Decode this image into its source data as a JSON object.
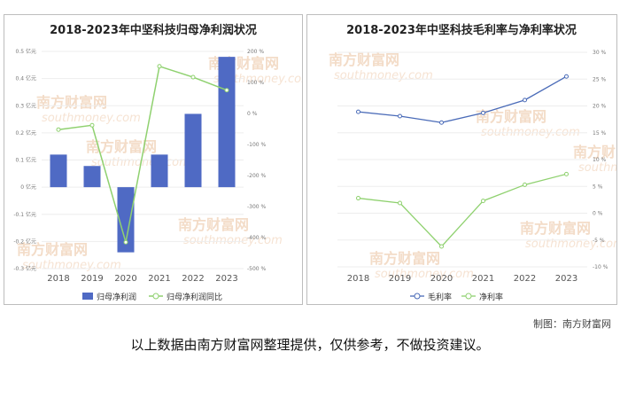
{
  "chart_data": [
    {
      "type": "bar",
      "title": "2018-2023年中坚科技归母净利润状况",
      "categories": [
        "2018",
        "2019",
        "2020",
        "2021",
        "2022",
        "2023"
      ],
      "series": [
        {
          "name": "归母净利润",
          "type": "bar",
          "axis": "left",
          "color": "#4f6ac4",
          "values": [
            0.12,
            0.078,
            -0.24,
            0.12,
            0.27,
            0.48
          ]
        },
        {
          "name": "归母净利润同比",
          "type": "line",
          "axis": "right",
          "color": "#8fd16f",
          "values": [
            -52,
            -38,
            -415,
            152,
            117,
            75
          ]
        }
      ],
      "y_left": {
        "min": -0.3,
        "max": 0.5,
        "ticks": [
          "-0.3 亿元",
          "-0.2 亿元",
          "-0.1 亿元",
          "0 亿元",
          "0.1 亿元",
          "0.2 亿元",
          "0.3 亿元",
          "0.4 亿元",
          "0.5 亿元"
        ]
      },
      "y_right": {
        "min": -500,
        "max": 200,
        "ticks": [
          "-500 %",
          "-400 %",
          "-300 %",
          "-200 %",
          "-100 %",
          "0 %",
          "100 %",
          "200 %"
        ]
      },
      "legend": "bottom",
      "grid": true
    },
    {
      "type": "line",
      "title": "2018-2023年中坚科技毛利率与净利率状况",
      "categories": [
        "2018",
        "2019",
        "2020",
        "2021",
        "2022",
        "2023"
      ],
      "series": [
        {
          "name": "毛利率",
          "color": "#4a6bb8",
          "values": [
            18.9,
            18.1,
            16.9,
            18.7,
            21.1,
            25.5
          ]
        },
        {
          "name": "净利率",
          "color": "#8fd16f",
          "values": [
            2.8,
            1.9,
            -6.2,
            2.3,
            5.3,
            7.3
          ]
        }
      ],
      "y_right": {
        "min": -10,
        "max": 30,
        "ticks": [
          "-10 %",
          "-5 %",
          "0 %",
          "5 %",
          "10 %",
          "15 %",
          "20 %",
          "25 %",
          "30 %"
        ]
      },
      "legend": "bottom",
      "grid": true
    }
  ],
  "watermark": {
    "cn": "南方财富网",
    "en": "southmoney.com"
  },
  "footer": {
    "credit": "制图：南方财富网",
    "disclaimer": "以上数据由南方财富网整理提供，仅供参考，不做投资建议。"
  }
}
